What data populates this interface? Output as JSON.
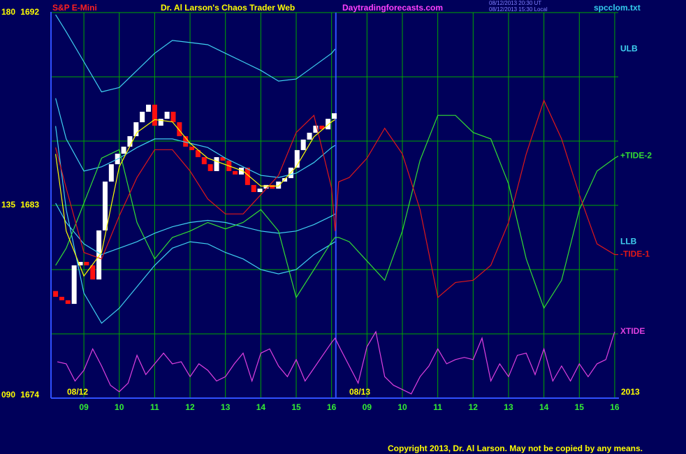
{
  "chart_data": {
    "type": "tide",
    "header": {
      "instrument": "S&P E-Mini",
      "title": "Dr. Al Larson's Chaos Trader Web",
      "site": "Daytradingforecasts.com",
      "time_ut": "08/12/2013 20:30 UT",
      "time_local": "08/12/2013 15:30 Local",
      "file": "spcclom.txt"
    },
    "copyright": "Copyright 2013, Dr. Al Larson. May not be copied by any means.",
    "date_labels": [
      "08/12",
      "08/13",
      "2013"
    ],
    "xlim": [
      8.11,
      24.1
    ],
    "xticks": [
      {
        "value": 9,
        "label": "09"
      },
      10,
      11,
      12,
      13,
      14,
      15,
      16,
      {
        "value": 17,
        "label": "09"
      },
      {
        "value": 18,
        "label": "10"
      },
      {
        "value": 19,
        "label": "11"
      },
      {
        "value": 20,
        "label": "12"
      },
      {
        "value": 21,
        "label": "13"
      },
      {
        "value": 22,
        "label": "14"
      },
      {
        "value": 23,
        "label": "15"
      },
      {
        "value": 24,
        "label": "16"
      }
    ],
    "day_separator": 16.12,
    "ylim": [
      1674,
      1692
    ],
    "yticks": [
      1692,
      1683,
      1674
    ],
    "y2lim": [
      90,
      180
    ],
    "y2ticks": [
      180,
      135,
      {
        "value": 90,
        "label": "090"
      }
    ],
    "grid_y": [
      1674,
      1677,
      1680,
      1683,
      1686,
      1689,
      1692
    ],
    "grid": true,
    "grid_color": "#00a800",
    "candles": {
      "up_color": "#ffffff",
      "down_color": "#ff1010",
      "x": [
        8.2,
        8.375,
        8.55,
        8.725,
        8.9,
        9.075,
        9.25,
        9.425,
        9.6,
        9.775,
        9.95,
        10.125,
        10.3,
        10.475,
        10.65,
        10.825,
        11,
        11.175,
        11.35,
        11.525,
        11.7,
        11.875,
        12.05,
        12.225,
        12.4,
        12.575,
        12.75,
        12.925,
        13.1,
        13.275,
        13.45,
        13.625,
        13.8,
        13.975,
        14.15,
        14.325,
        14.5,
        14.675,
        14.85,
        15.025,
        15.2,
        15.375,
        15.55,
        15.725,
        15.9,
        16.075
      ],
      "open": [
        1679.0,
        1678.73,
        1678.57,
        1678.4,
        1680.2,
        1680.36,
        1680.2,
        1679.54,
        1681.83,
        1684.11,
        1684.92,
        1685.41,
        1685.74,
        1686.23,
        1686.88,
        1687.37,
        1687.7,
        1686.72,
        1687.04,
        1687.37,
        1686.88,
        1686.23,
        1685.74,
        1685.58,
        1685.25,
        1684.92,
        1684.6,
        1685.25,
        1685.09,
        1684.6,
        1684.44,
        1684.76,
        1683.95,
        1683.62,
        1683.78,
        1683.95,
        1683.78,
        1684.11,
        1684.27,
        1684.76,
        1685.58,
        1686.07,
        1686.39,
        1686.72,
        1686.55,
        1687.04
      ],
      "close": [
        1678.73,
        1678.57,
        1678.4,
        1680.2,
        1680.36,
        1680.2,
        1679.54,
        1681.83,
        1684.11,
        1684.92,
        1685.41,
        1685.74,
        1686.23,
        1686.88,
        1687.37,
        1687.7,
        1686.72,
        1687.04,
        1687.37,
        1686.88,
        1686.23,
        1685.74,
        1685.58,
        1685.25,
        1684.92,
        1684.6,
        1685.25,
        1685.09,
        1684.6,
        1684.44,
        1684.76,
        1683.95,
        1683.62,
        1683.78,
        1683.95,
        1683.78,
        1684.11,
        1684.27,
        1684.76,
        1685.58,
        1686.07,
        1686.39,
        1686.72,
        1686.55,
        1687.04,
        1687.3
      ]
    },
    "series": [
      {
        "name": "ULB",
        "color": "#3fd0f0",
        "x": [
          8.2,
          8.5,
          9,
          9.5,
          10,
          10.5,
          11,
          11.5,
          12,
          12.5,
          13,
          13.5,
          14,
          14.5,
          15,
          15.5,
          16,
          16.1
        ],
        "values": [
          1691.9,
          1691.1,
          1689.7,
          1688.3,
          1688.5,
          1689.3,
          1690.1,
          1690.7,
          1690.6,
          1690.5,
          1690.1,
          1689.7,
          1689.3,
          1688.8,
          1688.9,
          1689.5,
          1690.1,
          1690.3
        ]
      },
      {
        "color": "#3fd0f0",
        "x": [
          8.2,
          8.5,
          9,
          9.5,
          10,
          10.5,
          11,
          11.5,
          12,
          12.5,
          13,
          13.5,
          14,
          14.5,
          15,
          15.5,
          16,
          16.1
        ],
        "values": [
          1688.0,
          1686.1,
          1684.6,
          1684.8,
          1685.2,
          1685.7,
          1686.1,
          1686.1,
          1685.9,
          1685.7,
          1685.2,
          1684.8,
          1684.4,
          1684.3,
          1684.5,
          1685.0,
          1685.7,
          1685.8
        ]
      },
      {
        "color": "#3fd0f0",
        "x": [
          8.2,
          8.5,
          9,
          9.5,
          10,
          10.5,
          11,
          11.5,
          12,
          12.5,
          13,
          13.5,
          14,
          14.5,
          15,
          15.5,
          16,
          16.1
        ],
        "values": [
          1683.1,
          1682.2,
          1681.2,
          1680.7,
          1681.0,
          1681.3,
          1681.7,
          1682.0,
          1682.2,
          1682.3,
          1682.2,
          1682.0,
          1681.8,
          1681.7,
          1681.8,
          1682.1,
          1682.5,
          1682.6
        ]
      },
      {
        "name": "LLB",
        "color": "#3fd0f0",
        "x": [
          8.2,
          8.5,
          9,
          9.5,
          10,
          10.5,
          11,
          11.5,
          12,
          12.5,
          13,
          13.5,
          14,
          14.5,
          15,
          15.5,
          16,
          16.1
        ],
        "values": [
          1686.7,
          1682.8,
          1678.9,
          1677.5,
          1678.2,
          1679.2,
          1680.2,
          1681.0,
          1681.3,
          1681.2,
          1680.8,
          1680.5,
          1680.0,
          1679.8,
          1680.0,
          1680.7,
          1681.2,
          1681.3
        ]
      },
      {
        "name": "+TIDE-2",
        "color": "#33dd33",
        "x": [
          8.2,
          8.5,
          9,
          9.5,
          10,
          10.5,
          11,
          11.5,
          12,
          12.5,
          13,
          13.5,
          14,
          14.5,
          15,
          15.5,
          16,
          16.1,
          16.2,
          16.5,
          17,
          17.5,
          18,
          18.5,
          19,
          19.5,
          20,
          20.5,
          21,
          21.5,
          22,
          22.5,
          23,
          23.5,
          24,
          24.1
        ],
        "values": [
          1680.2,
          1681.0,
          1683.1,
          1685.2,
          1685.6,
          1682.2,
          1680.5,
          1681.5,
          1681.8,
          1682.2,
          1681.9,
          1682.2,
          1682.8,
          1681.8,
          1678.7,
          1680.0,
          1681.3,
          1681.5,
          1681.5,
          1681.3,
          1680.4,
          1679.5,
          1681.8,
          1685.1,
          1687.2,
          1687.2,
          1686.4,
          1686.1,
          1684.0,
          1680.5,
          1678.2,
          1679.5,
          1682.8,
          1684.6,
          1685.2,
          1685.3
        ]
      },
      {
        "name": "-TIDE-1",
        "color": "#e01818",
        "x": [
          8.2,
          8.5,
          9,
          9.5,
          10,
          10.5,
          11,
          11.5,
          12,
          12.5,
          13,
          13.5,
          14,
          14.5,
          15,
          15.5,
          16,
          16.1,
          16.2,
          16.5,
          17,
          17.5,
          18,
          18.5,
          19,
          19.5,
          20,
          20.5,
          21,
          21.5,
          22,
          22.5,
          23,
          23.5,
          24,
          24.1
        ],
        "values": [
          1685.7,
          1683.8,
          1680.8,
          1680.5,
          1682.5,
          1684.3,
          1685.6,
          1685.6,
          1684.6,
          1683.3,
          1682.6,
          1682.6,
          1683.5,
          1684.4,
          1686.4,
          1687.2,
          1683.8,
          1681.8,
          1684.1,
          1684.3,
          1685.2,
          1686.6,
          1685.4,
          1682.8,
          1678.7,
          1679.4,
          1679.5,
          1680.2,
          1682.2,
          1685.4,
          1687.9,
          1686.1,
          1683.5,
          1681.2,
          1680.7,
          1680.7
        ]
      },
      {
        "name": "XTIDE",
        "color": "#e040e0",
        "x": [
          8.25,
          8.5,
          8.75,
          9,
          9.25,
          9.5,
          9.75,
          10,
          10.25,
          10.5,
          10.75,
          11,
          11.25,
          11.5,
          11.75,
          12,
          12.25,
          12.5,
          12.75,
          13,
          13.25,
          13.5,
          13.75,
          14,
          14.25,
          14.5,
          14.75,
          15,
          15.25,
          15.5,
          15.75,
          16,
          16.1,
          16.25,
          16.5,
          16.75,
          17,
          17.25,
          17.5,
          17.75,
          18,
          18.25,
          18.5,
          18.75,
          19,
          19.25,
          19.5,
          19.75,
          20,
          20.25,
          20.5,
          20.75,
          21,
          21.25,
          21.5,
          21.75,
          22,
          22.25,
          22.5,
          22.75,
          23,
          23.25,
          23.5,
          23.75,
          24
        ],
        "values": [
          1675.7,
          1675.6,
          1674.8,
          1675.3,
          1676.3,
          1675.5,
          1674.6,
          1674.3,
          1674.7,
          1676.0,
          1675.1,
          1675.6,
          1676.1,
          1675.6,
          1675.7,
          1675.0,
          1675.6,
          1675.3,
          1674.8,
          1675.0,
          1675.6,
          1676.1,
          1674.8,
          1676.1,
          1676.3,
          1675.5,
          1675.0,
          1675.8,
          1674.8,
          1675.4,
          1676.0,
          1676.6,
          1676.8,
          1676.3,
          1675.5,
          1674.7,
          1676.4,
          1677.1,
          1675.0,
          1674.6,
          1674.4,
          1674.2,
          1675.0,
          1675.5,
          1676.3,
          1675.6,
          1675.8,
          1675.9,
          1675.8,
          1676.8,
          1674.8,
          1675.6,
          1675.0,
          1676.0,
          1676.1,
          1675.1,
          1676.3,
          1674.8,
          1675.5,
          1674.8,
          1675.6,
          1675.0,
          1675.6,
          1675.8,
          1677.1
        ]
      },
      {
        "color": "#ffff00",
        "x": [
          8.2,
          8.5,
          9,
          9.5,
          10,
          10.5,
          11,
          11.5,
          12,
          12.5,
          13,
          13.5,
          14,
          14.5,
          15,
          15.5,
          16,
          16.1
        ],
        "values": [
          1685.4,
          1681.8,
          1679.7,
          1680.8,
          1684.8,
          1686.4,
          1687.0,
          1686.9,
          1685.9,
          1685.2,
          1684.9,
          1684.6,
          1683.9,
          1683.9,
          1684.8,
          1686.2,
          1686.9,
          1687.0
        ]
      }
    ]
  }
}
